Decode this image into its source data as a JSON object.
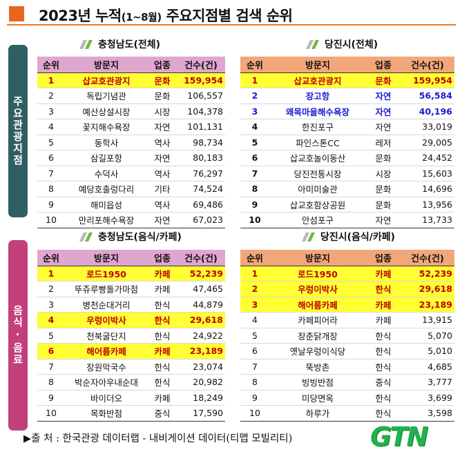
{
  "title": {
    "main1": "2023년 누적",
    "small": "(1~8월)",
    "main2": " 주요지점별 검색 순위"
  },
  "side_tabs": {
    "top": "주요관광지점",
    "bottom": "음식·음료"
  },
  "columns": [
    "순위",
    "방문지",
    "업종",
    "건수(건)"
  ],
  "tables": [
    {
      "title": "충청남도(전체)",
      "rows": [
        {
          "rank": "1",
          "name": "삽교호관광지",
          "type": "문화",
          "count": "159,954",
          "style": "hl"
        },
        {
          "rank": "2",
          "name": "독립기념관",
          "type": "문화",
          "count": "106,557",
          "style": ""
        },
        {
          "rank": "3",
          "name": "예산상설시장",
          "type": "시장",
          "count": "104,378",
          "style": ""
        },
        {
          "rank": "4",
          "name": "꽃지해수욕장",
          "type": "자연",
          "count": "101,131",
          "style": ""
        },
        {
          "rank": "5",
          "name": "동학사",
          "type": "역사",
          "count": "98,734",
          "style": ""
        },
        {
          "rank": "6",
          "name": "삼길포항",
          "type": "자연",
          "count": "80,183",
          "style": ""
        },
        {
          "rank": "7",
          "name": "수덕사",
          "type": "역사",
          "count": "76,297",
          "style": ""
        },
        {
          "rank": "8",
          "name": "예당호출렁다리",
          "type": "기타",
          "count": "74,524",
          "style": ""
        },
        {
          "rank": "9",
          "name": "해미읍성",
          "type": "역사",
          "count": "69,486",
          "style": ""
        },
        {
          "rank": "10",
          "name": "만리포해수욕장",
          "type": "자연",
          "count": "67,023",
          "style": ""
        }
      ]
    },
    {
      "title": "당진시(전체)",
      "rows": [
        {
          "rank": "1",
          "name": "삽교호관광지",
          "type": "문화",
          "count": "159,954",
          "style": "hl"
        },
        {
          "rank": "2",
          "name": "장고항",
          "type": "자연",
          "count": "56,584",
          "style": "blue"
        },
        {
          "rank": "3",
          "name": "왜목마을해수욕장",
          "type": "자연",
          "count": "40,196",
          "style": "blue"
        },
        {
          "rank": "4",
          "name": "한진포구",
          "type": "자연",
          "count": "33,019",
          "style": "boldrank"
        },
        {
          "rank": "5",
          "name": "파인스톤CC",
          "type": "레저",
          "count": "29,005",
          "style": "boldrank"
        },
        {
          "rank": "6",
          "name": "삽교호놀이동산",
          "type": "문화",
          "count": "24,452",
          "style": "boldrank"
        },
        {
          "rank": "7",
          "name": "당진전통시장",
          "type": "시장",
          "count": "15,603",
          "style": "boldrank"
        },
        {
          "rank": "8",
          "name": "아미미술관",
          "type": "문화",
          "count": "14,696",
          "style": "boldrank"
        },
        {
          "rank": "9",
          "name": "삽교호함상공원",
          "type": "문화",
          "count": "13,956",
          "style": "boldrank"
        },
        {
          "rank": "10",
          "name": "안섬포구",
          "type": "자연",
          "count": "13,733",
          "style": "boldrank"
        }
      ]
    },
    {
      "title": "충청남도(음식/카페)",
      "rows": [
        {
          "rank": "1",
          "name": "로드1950",
          "type": "카페",
          "count": "52,239",
          "style": "hl"
        },
        {
          "rank": "2",
          "name": "뚜쥬루빵돌가마점",
          "type": "카페",
          "count": "47,465",
          "style": ""
        },
        {
          "rank": "3",
          "name": "병천순대거리",
          "type": "한식",
          "count": "44,879",
          "style": ""
        },
        {
          "rank": "4",
          "name": "우렁이박사",
          "type": "한식",
          "count": "29,618",
          "style": "hl"
        },
        {
          "rank": "5",
          "name": "천북굴단지",
          "type": "한식",
          "count": "24,922",
          "style": ""
        },
        {
          "rank": "6",
          "name": "해어름카페",
          "type": "카페",
          "count": "23,189",
          "style": "hl"
        },
        {
          "rank": "7",
          "name": "장원막국수",
          "type": "한식",
          "count": "23,074",
          "style": ""
        },
        {
          "rank": "8",
          "name": "박순자아우내순대",
          "type": "한식",
          "count": "20,982",
          "style": ""
        },
        {
          "rank": "9",
          "name": "바이더오",
          "type": "카페",
          "count": "18,249",
          "style": ""
        },
        {
          "rank": "10",
          "name": "목화반점",
          "type": "중식",
          "count": "17,590",
          "style": ""
        }
      ]
    },
    {
      "title": "당진시(음식/카페)",
      "rows": [
        {
          "rank": "1",
          "name": "로드1950",
          "type": "카페",
          "count": "52,239",
          "style": "hl"
        },
        {
          "rank": "2",
          "name": "우렁이박사",
          "type": "한식",
          "count": "29,618",
          "style": "hl"
        },
        {
          "rank": "3",
          "name": "해어름카페",
          "type": "카페",
          "count": "23,189",
          "style": "hl"
        },
        {
          "rank": "4",
          "name": "카페피어라",
          "type": "카페",
          "count": "13,915",
          "style": ""
        },
        {
          "rank": "5",
          "name": "장춘닭개장",
          "type": "한식",
          "count": "5,070",
          "style": ""
        },
        {
          "rank": "6",
          "name": "옛날우렁이식당",
          "type": "한식",
          "count": "5,010",
          "style": ""
        },
        {
          "rank": "7",
          "name": "뚝방촌",
          "type": "한식",
          "count": "4,685",
          "style": ""
        },
        {
          "rank": "8",
          "name": "빙빙반점",
          "type": "중식",
          "count": "3,777",
          "style": ""
        },
        {
          "rank": "9",
          "name": "미당면옥",
          "type": "한식",
          "count": "3,699",
          "style": ""
        },
        {
          "rank": "10",
          "name": "하루가",
          "type": "한식",
          "count": "3,598",
          "style": ""
        }
      ]
    }
  ],
  "source": "▶출 처 : 한국관광 데이터랩 - 내비게이션 데이터(티맵 모빌리티)",
  "logo": "GTN",
  "colors": {
    "accent_orange": "#e8661e",
    "header_pink": "#dfa6cf",
    "header_orange": "#f2a77a",
    "highlight": "#ffff33",
    "highlight_text": "#c00000",
    "blue_text": "#1a1ad0",
    "side_teal": "#2f5f63",
    "side_pink": "#c2407c",
    "logo_green": "#22b14c"
  }
}
